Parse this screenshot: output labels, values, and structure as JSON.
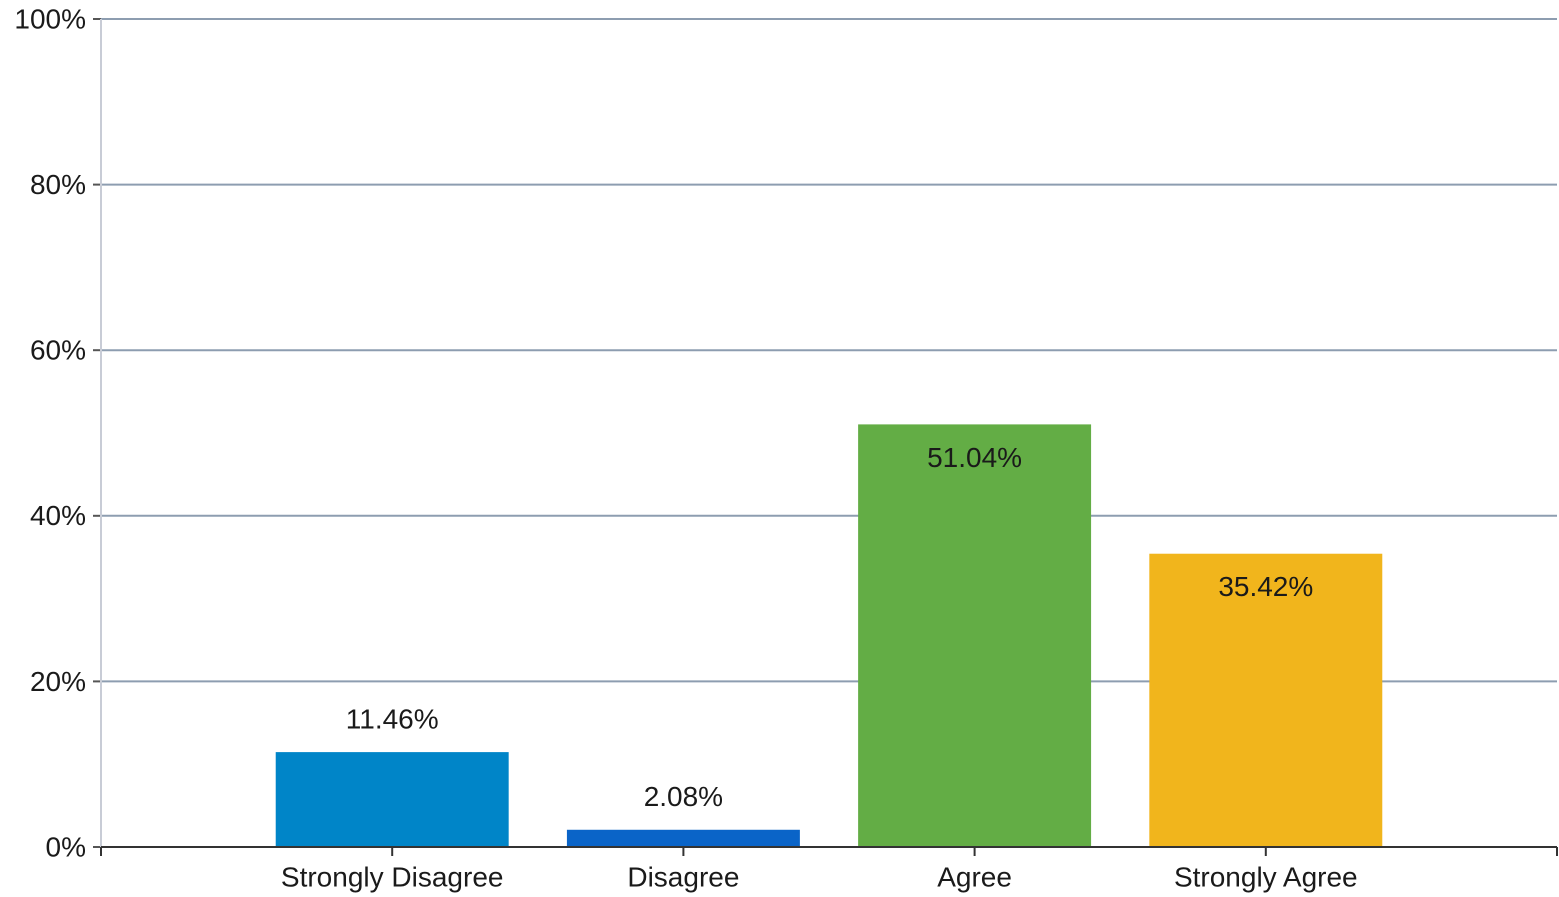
{
  "chart_data": {
    "type": "bar",
    "categories": [
      "Strongly Disagree",
      "Disagree",
      "Agree",
      "Strongly Agree"
    ],
    "values": [
      11.46,
      2.08,
      51.04,
      35.42
    ],
    "value_labels": [
      "11.46%",
      "2.08%",
      "51.04%",
      "35.42%"
    ],
    "colors": [
      "#0085c8",
      "#0a64c8",
      "#63ad45",
      "#f1b51c"
    ],
    "ylim": [
      0,
      100
    ],
    "yticks": [
      {
        "value": 0,
        "label": "0%"
      },
      {
        "value": 20,
        "label": "20%"
      },
      {
        "value": 40,
        "label": "40%"
      },
      {
        "value": 60,
        "label": "60%"
      },
      {
        "value": 80,
        "label": "80%"
      },
      {
        "value": 100,
        "label": "100%"
      }
    ],
    "grid": true
  }
}
